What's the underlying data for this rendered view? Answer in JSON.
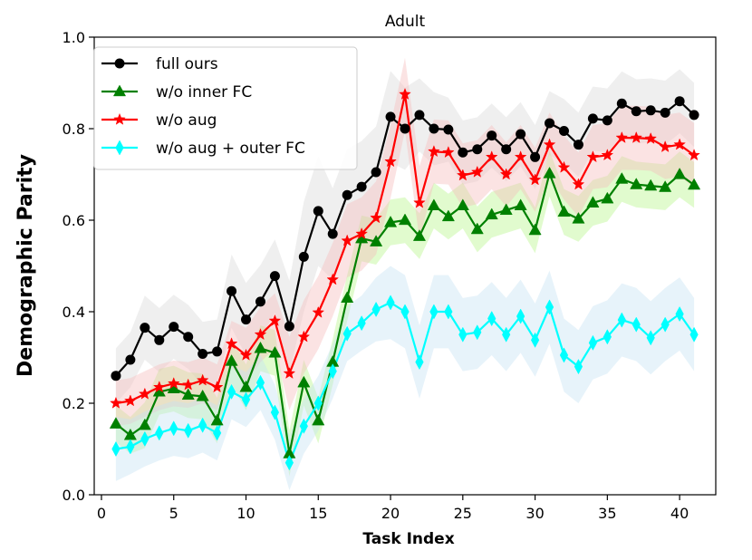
{
  "chart_data": {
    "type": "line",
    "title": "Adult",
    "xlabel": "Task Index",
    "ylabel": "Demographic Parity",
    "xlim": [
      -0.5,
      42.5
    ],
    "ylim": [
      0.0,
      1.0
    ],
    "xticks": [
      0,
      5,
      10,
      15,
      20,
      25,
      30,
      35,
      40
    ],
    "yticks": [
      0.0,
      0.2,
      0.4,
      0.6,
      0.8,
      1.0
    ],
    "xtick_labels": [
      "0",
      "5",
      "10",
      "15",
      "20",
      "25",
      "30",
      "35",
      "40"
    ],
    "ytick_labels": [
      "0.0",
      "0.2",
      "0.4",
      "0.6",
      "0.8",
      "1.0"
    ],
    "legend_position": "upper-left",
    "grid": false,
    "x": [
      1,
      2,
      3,
      4,
      5,
      6,
      7,
      8,
      9,
      10,
      11,
      12,
      13,
      14,
      15,
      16,
      17,
      18,
      19,
      20,
      21,
      22,
      23,
      24,
      25,
      26,
      27,
      28,
      29,
      30,
      31,
      32,
      33,
      34,
      35,
      36,
      37,
      38,
      39,
      40,
      41
    ],
    "series": [
      {
        "name": "full ours",
        "color": "#000000",
        "band_color": "#d9d9d9",
        "marker": "circle",
        "values": [
          0.26,
          0.295,
          0.365,
          0.338,
          0.367,
          0.345,
          0.308,
          0.313,
          0.445,
          0.383,
          0.422,
          0.478,
          0.368,
          0.52,
          0.62,
          0.57,
          0.655,
          0.673,
          0.705,
          0.826,
          0.8,
          0.83,
          0.8,
          0.798,
          0.748,
          0.755,
          0.785,
          0.755,
          0.788,
          0.738,
          0.812,
          0.795,
          0.765,
          0.822,
          0.818,
          0.855,
          0.838,
          0.84,
          0.835,
          0.86,
          0.83
        ],
        "band": [
          0.06,
          0.06,
          0.07,
          0.07,
          0.07,
          0.07,
          0.07,
          0.07,
          0.08,
          0.08,
          0.08,
          0.08,
          0.1,
          0.12,
          0.12,
          0.1,
          0.1,
          0.1,
          0.1,
          0.1,
          0.09,
          0.08,
          0.08,
          0.07,
          0.07,
          0.07,
          0.07,
          0.07,
          0.07,
          0.07,
          0.07,
          0.07,
          0.07,
          0.07,
          0.07,
          0.07,
          0.07,
          0.07,
          0.07,
          0.07,
          0.07
        ]
      },
      {
        "name": "w/o inner FC",
        "color": "#008000",
        "band_color": "#b8f58a",
        "marker": "triangle",
        "values": [
          0.155,
          0.13,
          0.152,
          0.225,
          0.232,
          0.218,
          0.215,
          0.162,
          0.292,
          0.235,
          0.32,
          0.31,
          0.09,
          0.245,
          0.162,
          0.29,
          0.43,
          0.56,
          0.553,
          0.595,
          0.6,
          0.565,
          0.632,
          0.608,
          0.632,
          0.58,
          0.612,
          0.622,
          0.632,
          0.578,
          0.702,
          0.618,
          0.603,
          0.638,
          0.647,
          0.69,
          0.678,
          0.675,
          0.672,
          0.7,
          0.677
        ],
        "band": [
          0.04,
          0.04,
          0.05,
          0.05,
          0.05,
          0.05,
          0.05,
          0.05,
          0.05,
          0.05,
          0.05,
          0.05,
          0.05,
          0.05,
          0.05,
          0.05,
          0.05,
          0.05,
          0.05,
          0.05,
          0.05,
          0.05,
          0.05,
          0.05,
          0.05,
          0.05,
          0.05,
          0.05,
          0.05,
          0.05,
          0.05,
          0.05,
          0.05,
          0.05,
          0.05,
          0.05,
          0.05,
          0.05,
          0.05,
          0.05,
          0.05
        ]
      },
      {
        "name": "w/o aug",
        "color": "#ff0000",
        "band_color": "#f6bcbc",
        "marker": "star",
        "values": [
          0.2,
          0.205,
          0.22,
          0.235,
          0.243,
          0.24,
          0.25,
          0.235,
          0.33,
          0.305,
          0.35,
          0.38,
          0.265,
          0.345,
          0.398,
          0.47,
          0.555,
          0.57,
          0.605,
          0.728,
          0.875,
          0.638,
          0.75,
          0.748,
          0.698,
          0.705,
          0.738,
          0.7,
          0.738,
          0.688,
          0.765,
          0.715,
          0.678,
          0.738,
          0.742,
          0.78,
          0.78,
          0.778,
          0.76,
          0.765,
          0.742
        ],
        "band": [
          0.05,
          0.05,
          0.05,
          0.05,
          0.05,
          0.05,
          0.05,
          0.05,
          0.05,
          0.06,
          0.06,
          0.06,
          0.08,
          0.08,
          0.08,
          0.08,
          0.08,
          0.08,
          0.08,
          0.08,
          0.08,
          0.08,
          0.07,
          0.07,
          0.07,
          0.07,
          0.07,
          0.07,
          0.07,
          0.07,
          0.07,
          0.07,
          0.07,
          0.07,
          0.07,
          0.07,
          0.07,
          0.07,
          0.07,
          0.07,
          0.07
        ]
      },
      {
        "name": "w/o aug + outer FC",
        "color": "#00ffff",
        "band_color": "#c6e2f2",
        "marker": "diamond",
        "values": [
          0.1,
          0.105,
          0.122,
          0.135,
          0.145,
          0.14,
          0.152,
          0.135,
          0.225,
          0.208,
          0.245,
          0.18,
          0.07,
          0.15,
          0.2,
          0.27,
          0.352,
          0.375,
          0.405,
          0.42,
          0.4,
          0.29,
          0.4,
          0.4,
          0.35,
          0.355,
          0.385,
          0.35,
          0.39,
          0.338,
          0.41,
          0.305,
          0.28,
          0.332,
          0.345,
          0.382,
          0.372,
          0.343,
          0.372,
          0.395,
          0.35
        ],
        "band": [
          0.07,
          0.06,
          0.06,
          0.06,
          0.06,
          0.06,
          0.06,
          0.06,
          0.06,
          0.06,
          0.06,
          0.06,
          0.06,
          0.06,
          0.06,
          0.06,
          0.06,
          0.06,
          0.07,
          0.08,
          0.08,
          0.08,
          0.08,
          0.08,
          0.08,
          0.08,
          0.08,
          0.08,
          0.08,
          0.08,
          0.08,
          0.08,
          0.08,
          0.08,
          0.08,
          0.08,
          0.08,
          0.08,
          0.08,
          0.08,
          0.08
        ]
      }
    ]
  }
}
